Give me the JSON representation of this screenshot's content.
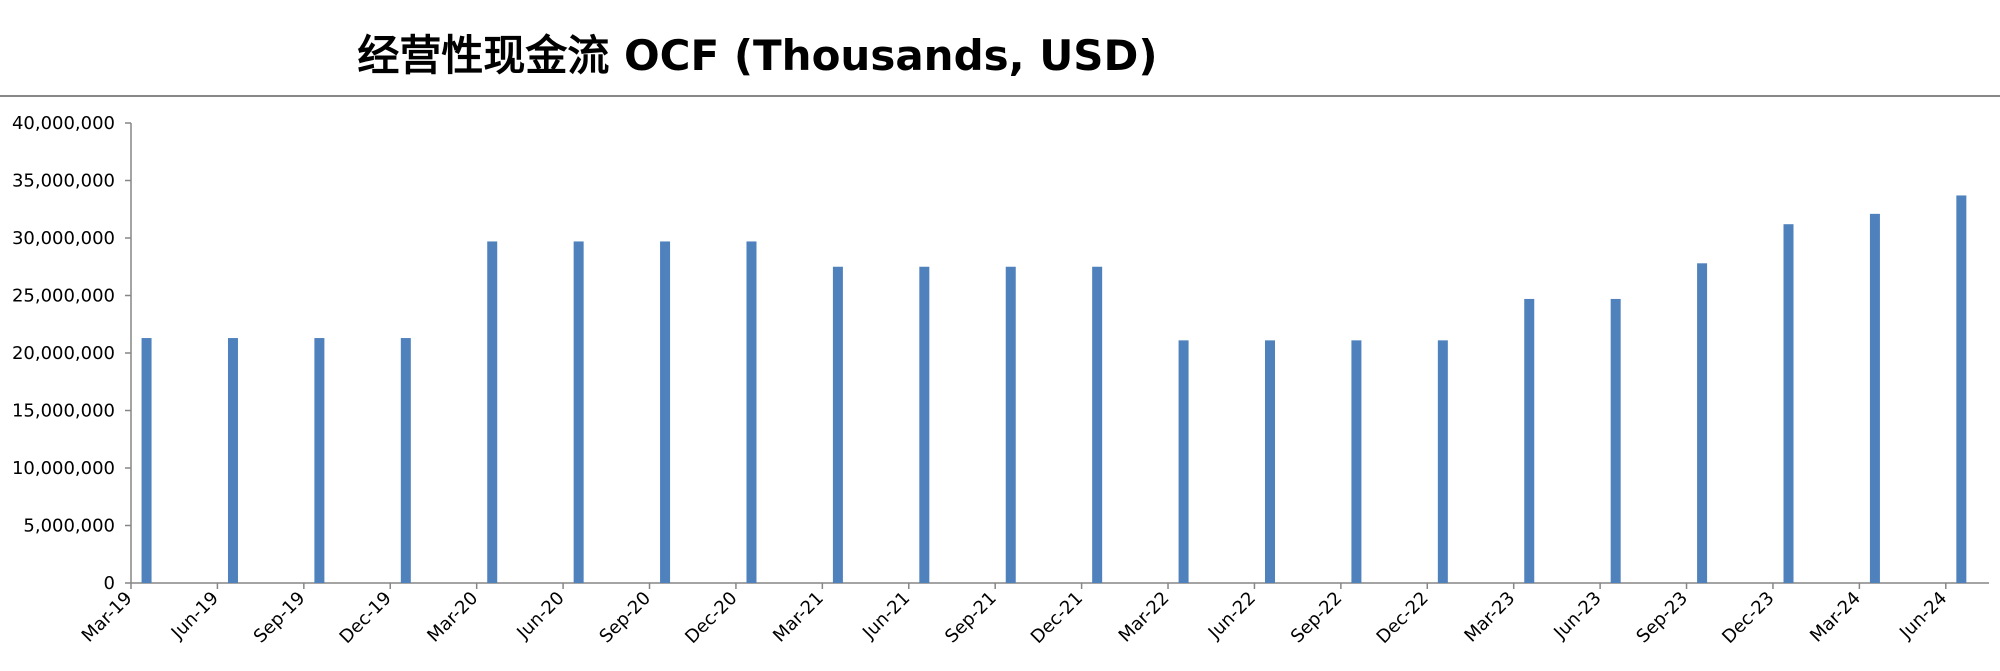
{
  "chart_data": {
    "type": "bar",
    "title": "经营性现金流 OCF (Thousands, USD)",
    "xlabel": "",
    "ylabel": "",
    "ylim": [
      0,
      40000000
    ],
    "yticks": [
      0,
      5000000,
      10000000,
      15000000,
      20000000,
      25000000,
      30000000,
      35000000,
      40000000
    ],
    "ytick_labels": [
      "0",
      "5,000,000",
      "10,000,000",
      "15,000,000",
      "20,000,000",
      "25,000,000",
      "30,000,000",
      "35,000,000",
      "40,000,000"
    ],
    "x_tick_labels": [
      "Mar-19",
      "Jun-19",
      "Sep-19",
      "Dec-19",
      "Mar-20",
      "Jun-20",
      "Sep-20",
      "Dec-20",
      "Mar-21",
      "Jun-21",
      "Sep-21",
      "Dec-21",
      "Mar-22",
      "Jun-22",
      "Sep-22",
      "Dec-22",
      "Mar-23",
      "Jun-23",
      "Sep-23",
      "Dec-23",
      "Mar-24",
      "Jun-24"
    ],
    "categories": [
      "Mar-19",
      "Jun-19",
      "Sep-19",
      "Dec-19",
      "Mar-20",
      "Jun-20",
      "Sep-20",
      "Dec-20",
      "Mar-21",
      "Jun-21",
      "Sep-21",
      "Dec-21",
      "Mar-22",
      "Jun-22",
      "Sep-22",
      "Dec-22",
      "Mar-23",
      "Jun-23",
      "Sep-23",
      "Dec-23",
      "Mar-24",
      "Jun-24"
    ],
    "values": [
      21300000,
      21300000,
      21300000,
      21300000,
      29700000,
      29700000,
      29700000,
      29700000,
      27500000,
      27500000,
      27500000,
      27500000,
      21100000,
      21100000,
      21100000,
      21100000,
      24700000,
      24700000,
      27800000,
      31200000,
      32100000,
      33700000
    ],
    "grid": false,
    "legend": "none",
    "colors": {
      "bar": "#4F81BD",
      "axis": "#868686",
      "text": "#000000"
    }
  }
}
